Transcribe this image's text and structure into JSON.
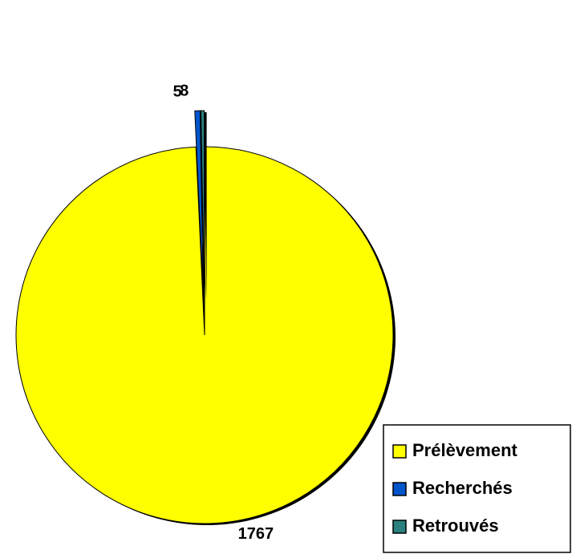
{
  "chart_data": {
    "type": "pie",
    "categories": [
      "Prélèvement",
      "Recherchés",
      "Retrouvés"
    ],
    "values": [
      1767,
      8,
      5
    ],
    "colors": [
      "#ffff00",
      "#0055cc",
      "#2a8080"
    ],
    "legend": "bottom-right"
  }
}
